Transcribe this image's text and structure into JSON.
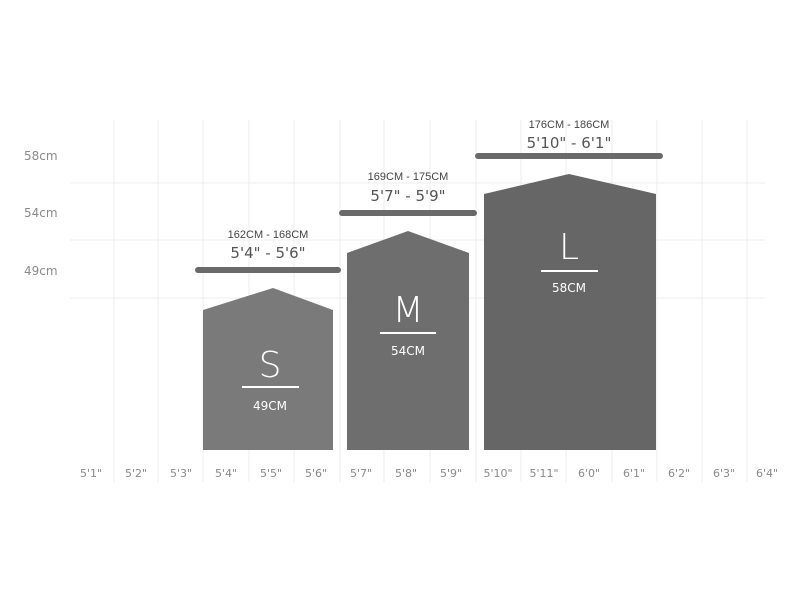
{
  "y_axis": {
    "labels": [
      "58cm",
      "54cm",
      "49cm"
    ]
  },
  "x_axis": {
    "labels": [
      "5'1\"",
      "5'2\"",
      "5'3\"",
      "5'4\"",
      "5'5\"",
      "5'6\"",
      "5'7\"",
      "5'8\"",
      "5'9\"",
      "5'10\"",
      "5'11\"",
      "6'0\"",
      "6'1\"",
      "6'2\"",
      "6'3\"",
      "6'4\""
    ]
  },
  "sizes": [
    {
      "letter": "S",
      "size_cm": "49CM",
      "height_cm": "162CM - 168CM",
      "height_ft": "5'4\" - 5'6\"",
      "color": "#7a7a7a"
    },
    {
      "letter": "M",
      "size_cm": "54CM",
      "height_cm": "169CM - 175CM",
      "height_ft": "5'7\" - 5'9\"",
      "color": "#6e6e6e"
    },
    {
      "letter": "L",
      "size_cm": "58CM",
      "height_cm": "176CM - 186CM",
      "height_ft": "5'10\" - 6'1\"",
      "color": "#666666"
    }
  ]
}
